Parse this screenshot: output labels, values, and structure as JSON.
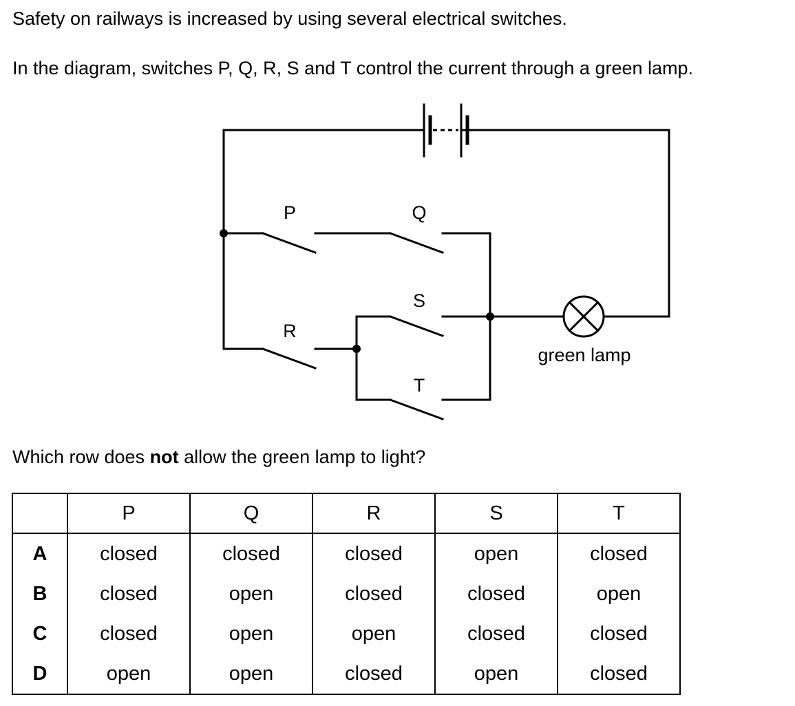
{
  "intro": {
    "line1": "Safety on railways is increased by using several electrical switches.",
    "line2": "In the diagram, switches P, Q, R, S and T control the current through a green lamp."
  },
  "diagram": {
    "switch_labels": {
      "P": "P",
      "Q": "Q",
      "R": "R",
      "S": "S",
      "T": "T"
    },
    "lamp_label": "green lamp"
  },
  "question": {
    "before": "Which row does ",
    "emphasis": "not",
    "after": " allow the green lamp to light?"
  },
  "table": {
    "headers": [
      "",
      "P",
      "Q",
      "R",
      "S",
      "T"
    ],
    "rows": [
      {
        "label": "A",
        "cells": [
          "closed",
          "closed",
          "closed",
          "open",
          "closed"
        ]
      },
      {
        "label": "B",
        "cells": [
          "closed",
          "open",
          "closed",
          "closed",
          "open"
        ]
      },
      {
        "label": "C",
        "cells": [
          "closed",
          "open",
          "open",
          "closed",
          "closed"
        ]
      },
      {
        "label": "D",
        "cells": [
          "open",
          "open",
          "closed",
          "open",
          "closed"
        ]
      }
    ]
  }
}
